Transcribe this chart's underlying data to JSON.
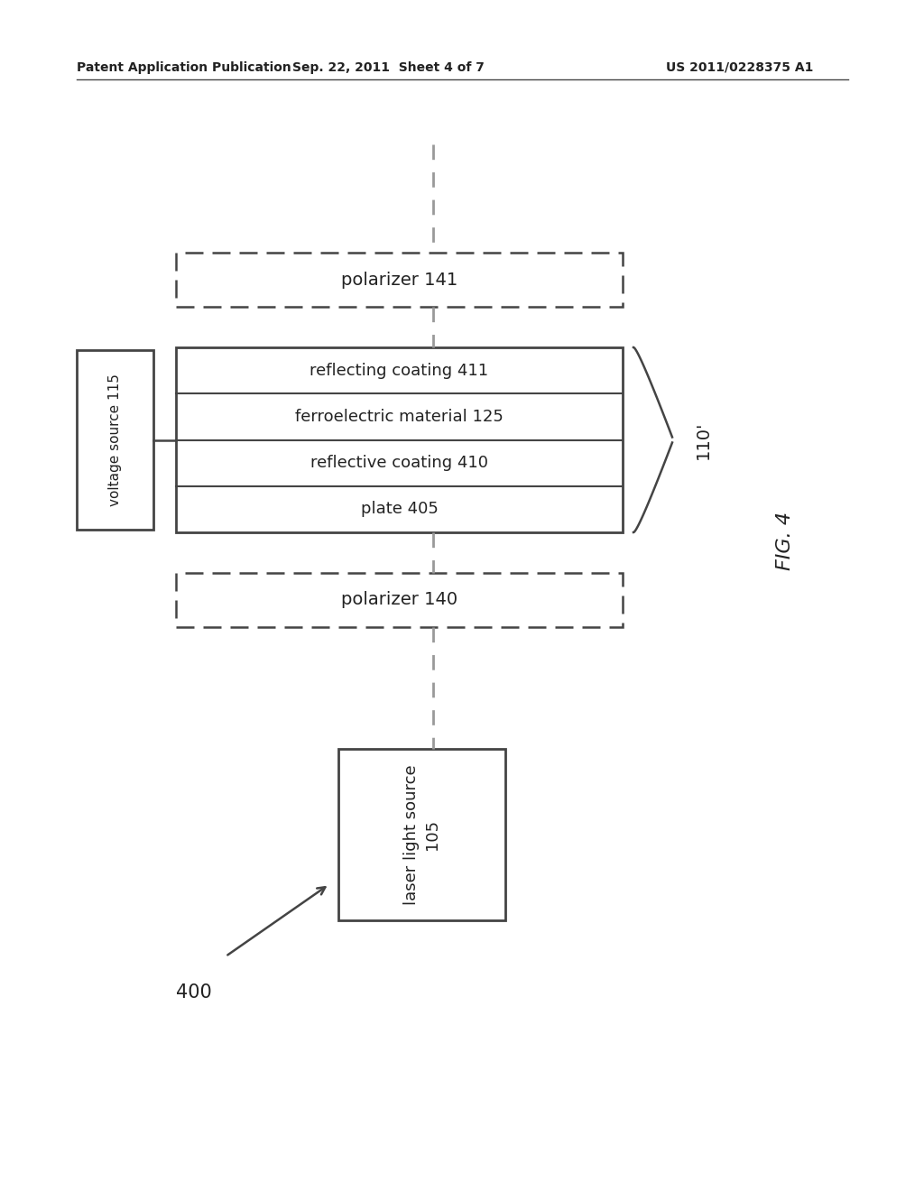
{
  "bg_color": "#ffffff",
  "header_left": "Patent Application Publication",
  "header_center": "Sep. 22, 2011  Sheet 4 of 7",
  "header_right": "US 2011/0228375 A1",
  "fig_label": "FIG. 4",
  "diagram_label": "400",
  "group_label": "110'",
  "voltage_label": "voltage source 115",
  "polarizer141_label": "polarizer 141",
  "polarizer140_label": "polarizer 140",
  "layer1_label": "reflecting coating 411",
  "layer2_label": "ferroelectric material 125",
  "layer3_label": "reflective coating 410",
  "layer4_label": "plate 405",
  "laser_label": "laser light source\n105",
  "dashed_line_color": "#999999",
  "box_edge_color": "#444444",
  "text_color": "#222222",
  "header_line_color": "#444444"
}
